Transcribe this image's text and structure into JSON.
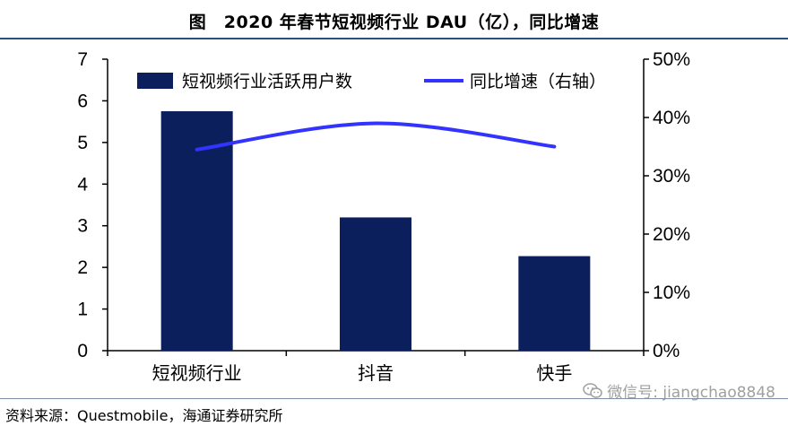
{
  "title": "图　2020 年春节短视频行业 DAU（亿），同比增速",
  "source": "资料来源：Questmobile，海通证券研究所",
  "watermark": "微信号: jiangchao8848",
  "watermark_icon": "wechat-icon",
  "chart_data": {
    "type": "bar",
    "categories": [
      "短视频行业",
      "抖音",
      "快手"
    ],
    "series": [
      {
        "name": "短视频行业活跃用户数",
        "kind": "bar",
        "axis": "left",
        "values": [
          5.75,
          3.2,
          2.27
        ],
        "color": "#0b1f5c"
      },
      {
        "name": "同比增速（右轴）",
        "kind": "line",
        "axis": "right",
        "values": [
          0.345,
          0.39,
          0.35
        ],
        "color": "#3333ff"
      }
    ],
    "y_left": {
      "ticks": [
        "0",
        "1",
        "2",
        "3",
        "4",
        "5",
        "6",
        "7"
      ],
      "lim": [
        0,
        7
      ]
    },
    "y_right": {
      "ticks": [
        "0%",
        "10%",
        "20%",
        "30%",
        "40%",
        "50%"
      ],
      "lim": [
        0,
        0.5
      ]
    },
    "legend_position": "top",
    "grid": false
  }
}
